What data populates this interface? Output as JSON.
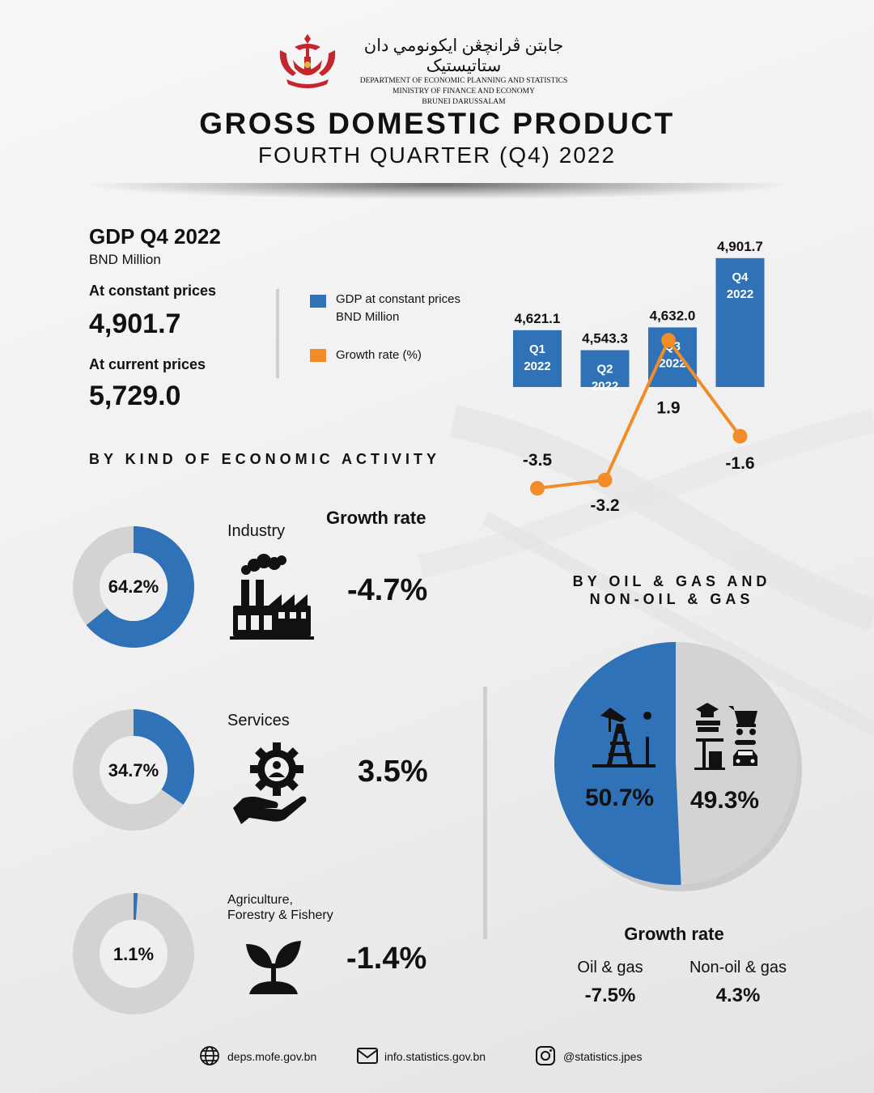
{
  "header": {
    "jawi": "جابتن ڤرانچڠن ايكونومي دان ستاتيستيک",
    "dept": "DEPARTMENT OF ECONOMIC PLANNING AND STATISTICS",
    "ministry": "MINISTRY OF FINANCE AND ECONOMY",
    "country": "BRUNEI DARUSSALAM"
  },
  "title": "GROSS DOMESTIC PRODUCT",
  "subtitle": "FOURTH QUARTER (Q4) 2022",
  "summary": {
    "heading": "GDP Q4 2022",
    "unit": "BND Million",
    "constant_label": "At constant prices",
    "constant_value": "4,901.7",
    "current_label": "At current prices",
    "current_value": "5,729.0"
  },
  "legend": {
    "gdp_line1": "GDP at constant prices",
    "gdp_line2": "BND Million",
    "growth": "Growth rate (%)"
  },
  "colors": {
    "blue": "#2f72b8",
    "orange": "#f28c28",
    "grey": "#d3d3d3",
    "inner": "#efefef"
  },
  "chart_data": [
    {
      "type": "bar",
      "categories": [
        "Q1\n2022",
        "Q2\n2022",
        "Q3\n2022",
        "Q4\n2022"
      ],
      "category_lines": [
        [
          "Q1",
          "2022"
        ],
        [
          "Q2",
          "2022"
        ],
        [
          "Q3",
          "2022"
        ],
        [
          "Q4",
          "2022"
        ]
      ],
      "series": [
        {
          "name": "GDP at constant prices BND Million",
          "values": [
            4621.1,
            4543.3,
            4632.0,
            4901.7
          ],
          "labels": [
            "4,621.1",
            "4,543.3",
            "4,632.0",
            "4,901.7"
          ]
        },
        {
          "name": "Growth rate (%)",
          "type": "line",
          "values": [
            -3.5,
            -3.2,
            1.9,
            -1.6
          ],
          "labels": [
            "-3.5",
            "-3.2",
            "1.9",
            "-1.6"
          ]
        }
      ]
    },
    {
      "type": "pie",
      "title": "BY KIND OF ECONOMIC ACTIVITY",
      "slices": [
        {
          "label": "Industry",
          "value": 64.2,
          "text": "64.2%",
          "growth": "-4.7%"
        },
        {
          "label": "Services",
          "value": 34.7,
          "text": "34.7%",
          "growth": "3.5%"
        },
        {
          "label": "Agriculture, Forestry & Fishery",
          "value": 1.1,
          "text": "1.1%",
          "growth": "-1.4%"
        }
      ]
    },
    {
      "type": "pie",
      "title": "BY OIL & GAS AND NON-OIL & GAS",
      "slices": [
        {
          "label": "Oil & gas",
          "value": 50.7,
          "text": "50.7%",
          "growth": "-7.5%"
        },
        {
          "label": "Non-oil & gas",
          "value": 49.3,
          "text": "49.3%",
          "growth": "4.3%"
        }
      ]
    }
  ],
  "activity": {
    "section_title": "BY KIND OF ECONOMIC ACTIVITY",
    "growth_heading": "Growth rate",
    "industry": {
      "name": "Industry",
      "share": "64.2%",
      "growth": "-4.7%"
    },
    "services": {
      "name": "Services",
      "share": "34.7%",
      "growth": "3.5%"
    },
    "agri": {
      "name_line1": "Agriculture,",
      "name_line2": "Forestry & Fishery",
      "share": "1.1%",
      "growth": "-1.4%"
    }
  },
  "oilgas": {
    "title_line1": "BY OIL & GAS AND",
    "title_line2": "NON-OIL & GAS",
    "oil_share": "50.7%",
    "nonoil_share": "49.3%",
    "growth_heading": "Growth rate",
    "oil_label": "Oil & gas",
    "oil_growth": "-7.5%",
    "nonoil_label": "Non-oil & gas",
    "nonoil_growth": "4.3%"
  },
  "icons": [
    "crest-icon",
    "factory-icon",
    "gear-hand-icon",
    "sprout-icon",
    "oil-rig-icon",
    "non-oil-icons",
    "globe-icon",
    "mail-icon",
    "instagram-icon"
  ],
  "footer": {
    "website": "deps.mofe.gov.bn",
    "email": "info.statistics.gov.bn",
    "instagram": "@statistics.jpes"
  }
}
